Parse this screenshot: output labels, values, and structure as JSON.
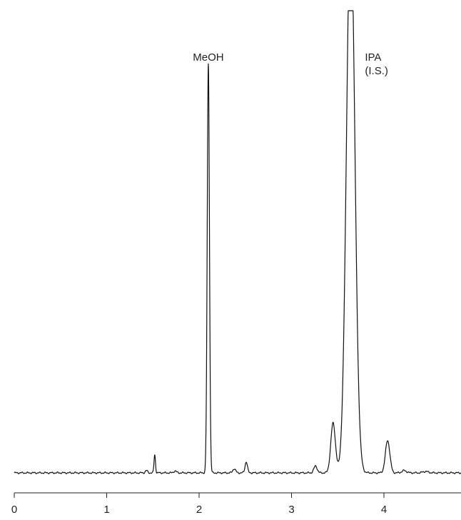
{
  "chart_data": {
    "type": "line",
    "title": "",
    "xlabel": "",
    "ylabel": "",
    "xlim": [
      0,
      4.85
    ],
    "ylim": [
      0,
      100
    ],
    "grid": false,
    "legend": "none",
    "x_ticks": [
      0,
      1,
      2,
      3,
      4
    ],
    "x_tick_labels": [
      "0",
      "1",
      "2",
      "3",
      "4"
    ],
    "series": [
      {
        "peaks": [
          {
            "x": 1.43,
            "height": 0.5,
            "width": 0.012
          },
          {
            "x": 1.52,
            "height": 3.9,
            "width": 0.008
          },
          {
            "x": 1.74,
            "height": 0.4,
            "width": 0.015
          },
          {
            "x": 2.1,
            "height": 88.5,
            "width": 0.012
          },
          {
            "x": 2.38,
            "height": 0.9,
            "width": 0.015
          },
          {
            "x": 2.51,
            "height": 2.4,
            "width": 0.013
          },
          {
            "x": 3.26,
            "height": 1.5,
            "width": 0.018
          },
          {
            "x": 3.45,
            "height": 10.8,
            "width": 0.025
          },
          {
            "x": 3.64,
            "height": 120,
            "width": 0.045
          },
          {
            "x": 4.04,
            "height": 7.0,
            "width": 0.024
          },
          {
            "x": 4.22,
            "height": 0.5,
            "width": 0.025
          },
          {
            "x": 4.45,
            "height": 0.3,
            "width": 0.03
          }
        ]
      }
    ],
    "annotations": [
      {
        "lines": [
          "MeOH"
        ],
        "x": 2.1
      },
      {
        "lines": [
          "IPA",
          "(I.S.)"
        ],
        "x": 3.64
      }
    ]
  },
  "colors": {
    "trace": "#111111",
    "axis": "#222222",
    "background": "#ffffff"
  }
}
